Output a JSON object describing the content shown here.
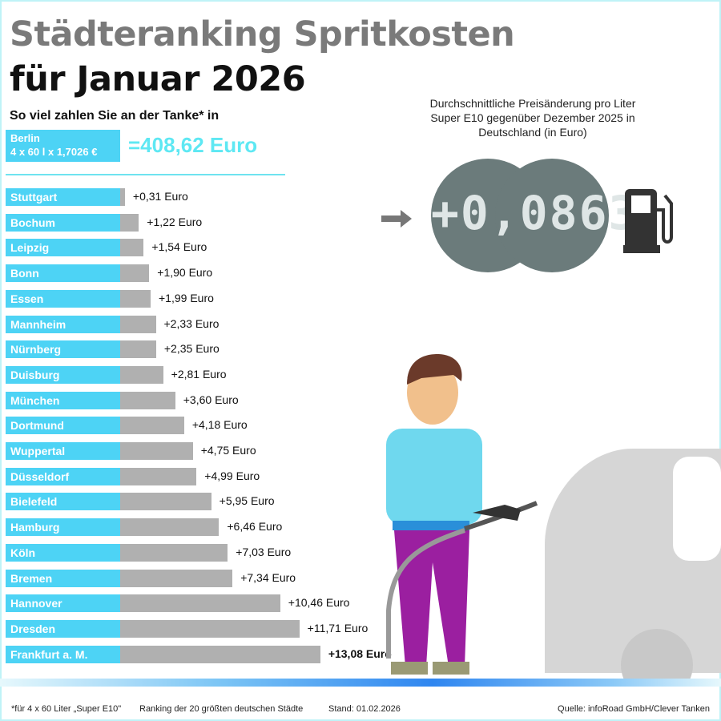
{
  "header": {
    "title_line1": "Städteranking Spritkosten",
    "title_line2": "für Januar 2026",
    "subtitle": "So viel zahlen Sie an der Tanke* in"
  },
  "reference": {
    "city": "Berlin",
    "formula": "4 x 60 l x 1,7026 €",
    "total": "=408,62 Euro"
  },
  "gauge": {
    "title": "Durchschnittliche Preisänderung pro Liter Super E10 gegenüber Dezember 2025 in Deutschland (in Euro)",
    "value": "+0,0863",
    "icon": "fuel-pump-icon",
    "arrow_icon": "arrow-right-icon"
  },
  "chart_data": {
    "type": "bar",
    "orientation": "horizontal",
    "categories": [
      "Stuttgart",
      "Bochum",
      "Leipzig",
      "Bonn",
      "Essen",
      "Mannheim",
      "Nürnberg",
      "Duisburg",
      "München",
      "Dortmund",
      "Wuppertal",
      "Düsseldorf",
      "Bielefeld",
      "Hamburg",
      "Köln",
      "Bremen",
      "Hannover",
      "Dresden",
      "Frankfurt a. M."
    ],
    "values": [
      0.31,
      1.22,
      1.54,
      1.9,
      1.99,
      2.33,
      2.35,
      2.81,
      3.6,
      4.18,
      4.75,
      4.99,
      5.95,
      6.46,
      7.03,
      7.34,
      10.46,
      11.71,
      13.08
    ],
    "labels": [
      "+0,31 Euro",
      "+1,22 Euro",
      "+1,54 Euro",
      "+1,90 Euro",
      "+1,99 Euro",
      "+2,33 Euro",
      "+2,35 Euro",
      "+2,81 Euro",
      "+3,60 Euro",
      "+4,18 Euro",
      "+4,75 Euro",
      "+4,99 Euro",
      "+5,95 Euro",
      "+6,46 Euro",
      "+7,03 Euro",
      "+7,34 Euro",
      "+10,46 Euro",
      "+11,71 Euro",
      "+13,08 Euro"
    ],
    "colors": {
      "label_box": "#4dd3f5",
      "bar": "#b0b0b0"
    }
  },
  "footer": {
    "note": "*für 4 x 60 Liter „Super E10\"",
    "ranking": "Ranking der 20 größten deutschen Städte",
    "date": "Stand: 01.02.2026",
    "source": "Quelle: infoRoad GmbH/Clever Tanken"
  }
}
